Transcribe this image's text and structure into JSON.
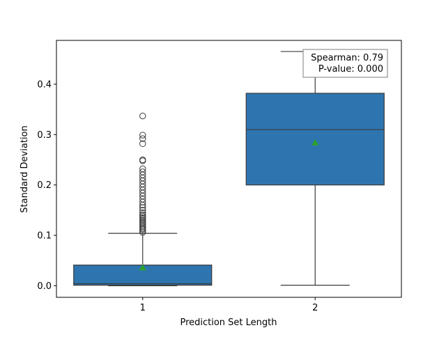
{
  "chart_data": {
    "type": "box",
    "title": "",
    "xlabel": "Prediction Set Length",
    "ylabel": "Standard Deviation",
    "ylim": [
      -0.023,
      0.487
    ],
    "yticks": [
      0.0,
      0.1,
      0.2,
      0.3,
      0.4
    ],
    "ytick_labels": [
      "0.0",
      "0.1",
      "0.2",
      "0.3",
      "0.4"
    ],
    "categories": [
      "1",
      "2"
    ],
    "boxes": [
      {
        "category": "1",
        "whisker_low": 0.0,
        "q1": 0.001,
        "median": 0.004,
        "q3": 0.041,
        "whisker_high": 0.104,
        "mean": 0.036,
        "outliers": [
          0.106,
          0.109,
          0.112,
          0.114,
          0.117,
          0.12,
          0.123,
          0.126,
          0.129,
          0.132,
          0.135,
          0.138,
          0.141,
          0.145,
          0.15,
          0.155,
          0.16,
          0.166,
          0.172,
          0.178,
          0.184,
          0.19,
          0.196,
          0.202,
          0.208,
          0.214,
          0.22,
          0.226,
          0.232,
          0.248,
          0.25,
          0.282,
          0.292,
          0.299,
          0.337
        ]
      },
      {
        "category": "2",
        "whisker_low": 0.001,
        "q1": 0.2,
        "median": 0.31,
        "q3": 0.382,
        "whisker_high": 0.465,
        "mean": 0.284,
        "outliers": []
      }
    ],
    "annotation": {
      "lines": [
        "Spearman: 0.79",
        "P-value: 0.000"
      ],
      "placement": "top-right"
    },
    "colors": {
      "box_fill": "#2e75b0",
      "box_edge": "#3a3a3a",
      "mean_marker": "#2ca02c"
    }
  }
}
